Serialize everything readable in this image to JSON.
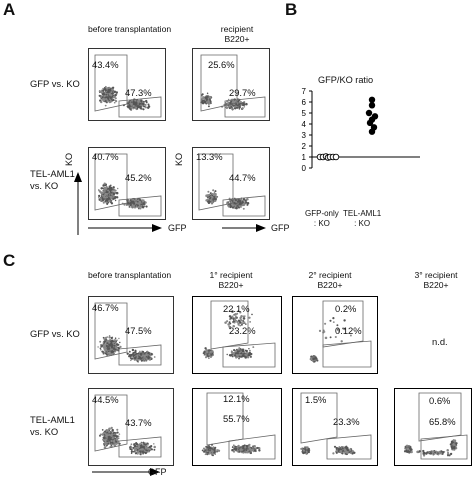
{
  "panels": {
    "A": {
      "letter": "A",
      "col_before": "before transplantation",
      "col_recipient": "recipient B220+",
      "row1": "GFP vs. KO",
      "row2": "TEL-AML1 vs. KO",
      "plots": [
        {
          "upper": "43.4%",
          "lower": "47.3%"
        },
        {
          "upper": "25.6%",
          "lower": "29.7%"
        },
        {
          "upper": "40.7%",
          "lower": "45.2%"
        },
        {
          "upper": "13.3%",
          "lower": "44.7%"
        }
      ],
      "y_axis": "KO",
      "x_axis": "GFP"
    },
    "B": {
      "letter": "B",
      "chart_title": "GFP/KO ratio",
      "xcat1_line1": "GFP-only",
      "xcat1_line2": ": KO",
      "xcat2_line1": "TEL-AML1",
      "xcat2_line2": ": KO",
      "yticks": [
        "0",
        "1",
        "2",
        "3",
        "4",
        "5",
        "6",
        "7"
      ]
    },
    "C": {
      "letter": "C",
      "col_before": "before transplantation",
      "col_1": "1° recipient B220+",
      "col_2": "2° recipient B220+",
      "col_3": "3° recipient B220+",
      "row1": "GFP vs. KO",
      "row2": "TEL-AML1 vs. KO",
      "plots": [
        {
          "upper": "46.7%",
          "lower": "47.5%"
        },
        {
          "upper": "22.1%",
          "lower": "23.2%"
        },
        {
          "upper": "0.2%",
          "lower": "0.12%"
        },
        {
          "nd": "n.d."
        },
        {
          "upper": "44.5%",
          "lower": "43.7%"
        },
        {
          "upper": "12.1%",
          "lower": "55.7%"
        },
        {
          "upper": "1.5%",
          "lower": "23.3%"
        },
        {
          "upper": "0.6%",
          "lower": "65.8%"
        }
      ],
      "x_axis": "GFP"
    }
  },
  "chart_data": {
    "type": "scatter",
    "title": "GFP/KO ratio",
    "categories": [
      "GFP-only : KO",
      "TEL-AML1 : KO"
    ],
    "ylim": [
      0,
      7
    ],
    "reference_line": 1,
    "series": [
      {
        "name": "GFP-only : KO",
        "x": "GFP-only : KO",
        "values": [
          1.0,
          1.0,
          1.05,
          0.95,
          1.0,
          1.0,
          1.0
        ],
        "marker": "open-circle"
      },
      {
        "name": "TEL-AML1 : KO",
        "x": "TEL-AML1 : KO",
        "values": [
          6.2,
          5.7,
          5.0,
          4.7,
          4.4,
          4.1,
          3.7,
          3.3
        ],
        "marker": "filled-circle"
      }
    ]
  }
}
